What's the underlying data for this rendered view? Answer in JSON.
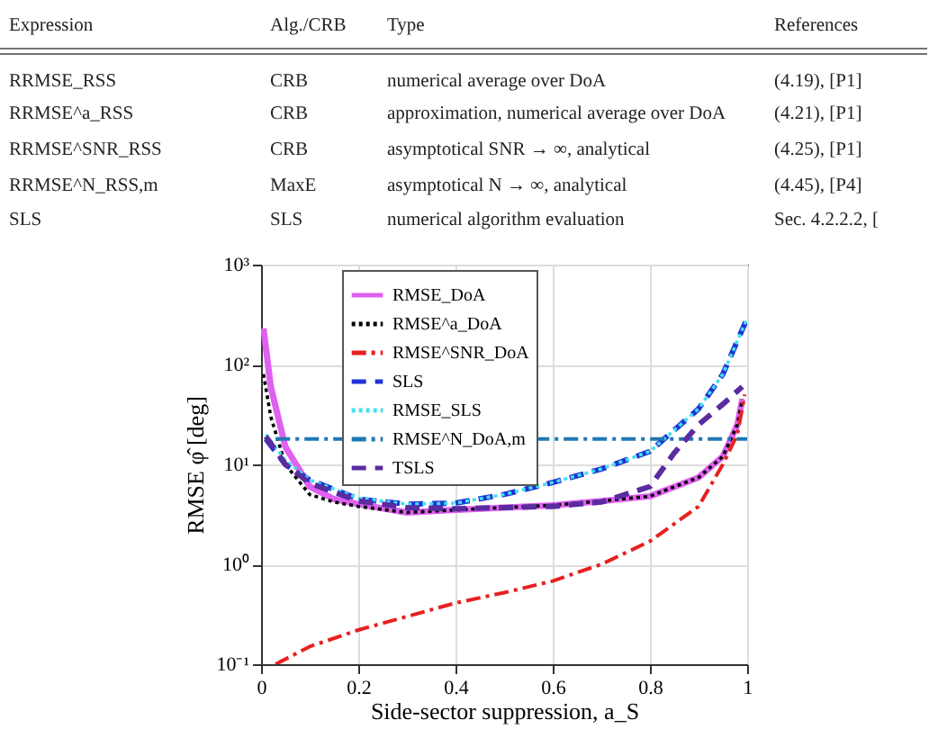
{
  "chart_data": {
    "type": "line",
    "xlabel": "Side-sector suppression, a_S",
    "ylabel": "RMSE φ̂ [deg]",
    "annotations": [
      "Expression",
      "Alg./CRB",
      "Type",
      "References",
      "RRMSE_RSS",
      "CRB",
      "numerical average over DoA",
      "(4.19), [P1]",
      "RRMSE^a_RSS",
      "CRB",
      "approximation, numerical average over DoA",
      "(4.21), [P1]",
      "RRMSE^SNR_RSS",
      "CRB",
      "asymptotical SNR → ∞, analytical",
      "(4.25), [P1]",
      "RRMSE^N_RSS,m",
      "MaxE",
      "asymptotical N → ∞, analytical",
      "(4.45), [P4]",
      "SLS",
      "SLS",
      "numerical algorithm evaluation",
      "Sec. 4.2.2.2, ["
    ],
    "log": "y",
    "grid": true,
    "legend": "top left",
    "xlim": [
      0,
      1
    ],
    "xticks": [
      0,
      0.2,
      0.4,
      0.6,
      0.8,
      1
    ],
    "ylim": [
      0.1,
      1000
    ],
    "yticks": [
      {
        "value": 0.1,
        "label": "10⁻¹"
      },
      {
        "value": 1,
        "label": "10⁰"
      },
      {
        "value": 10,
        "label": "10¹"
      },
      {
        "value": 100,
        "label": "10²"
      },
      {
        "value": 1000,
        "label": "10³"
      }
    ],
    "series": [
      {
        "name": "RMSE_DoA",
        "color": "#e060f0",
        "line_style": "solid",
        "x": [
          0.005,
          0.02,
          0.05,
          0.1,
          0.15,
          0.2,
          0.3,
          0.4,
          0.5,
          0.6,
          0.7,
          0.8,
          0.9,
          0.95,
          0.98,
          0.99
        ],
        "values": [
          230,
          60,
          15,
          6,
          4.5,
          4,
          3.3,
          3.5,
          3.7,
          3.9,
          4.3,
          4.8,
          7.4,
          12,
          25,
          45
        ]
      },
      {
        "name": "RMSE^a_DoA",
        "color": "#000000",
        "line_style": "dotted",
        "x": [
          0.005,
          0.02,
          0.05,
          0.1,
          0.15,
          0.2,
          0.3,
          0.4,
          0.5,
          0.6,
          0.7,
          0.8,
          0.9,
          0.95,
          0.98,
          0.99
        ],
        "values": [
          80,
          30,
          10,
          5,
          4.2,
          3.8,
          3.3,
          3.5,
          3.7,
          3.9,
          4.3,
          4.8,
          7.4,
          12,
          25,
          45
        ]
      },
      {
        "name": "RMSE^SNR_DoA",
        "color": "#e82020",
        "line_style": "dashdot",
        "x": [
          0.03,
          0.1,
          0.2,
          0.3,
          0.4,
          0.5,
          0.6,
          0.7,
          0.8,
          0.9,
          0.95,
          0.98,
          0.995
        ],
        "values": [
          0.1,
          0.15,
          0.22,
          0.3,
          0.41,
          0.52,
          0.68,
          1,
          1.7,
          3.8,
          10,
          20,
          50
        ]
      },
      {
        "name": "SLS",
        "color": "#1f33d6",
        "line_style": "dashed",
        "x": [
          0.01,
          0.05,
          0.1,
          0.2,
          0.3,
          0.4,
          0.5,
          0.6,
          0.7,
          0.8,
          0.9,
          0.95,
          1
        ],
        "values": [
          18,
          10,
          7,
          4.5,
          4,
          4.1,
          5,
          6.6,
          9,
          13.5,
          36,
          80,
          290
        ]
      },
      {
        "name": "RMSE_SLS",
        "color": "#40e0f0",
        "line_style": "dotted",
        "x": [
          0.01,
          0.05,
          0.1,
          0.2,
          0.3,
          0.4,
          0.5,
          0.6,
          0.7,
          0.8,
          0.9,
          0.95,
          1
        ],
        "values": [
          20,
          11,
          7,
          4.6,
          4,
          4.1,
          5,
          6.6,
          9,
          13.5,
          36,
          80,
          290
        ]
      },
      {
        "name": "RMSE^N_DoA,m",
        "color": "#1f77b4",
        "line_style": "dashdot",
        "x": [
          0.03,
          1
        ],
        "values": [
          18,
          18
        ]
      },
      {
        "name": "TSLS",
        "color": "#5a2ca0",
        "line_style": "dashed",
        "x": [
          0.01,
          0.05,
          0.1,
          0.2,
          0.3,
          0.4,
          0.5,
          0.6,
          0.7,
          0.8,
          0.85,
          0.9,
          0.95,
          0.99
        ],
        "values": [
          19,
          10,
          6.5,
          4.3,
          3.7,
          3.6,
          3.7,
          3.8,
          4.2,
          6,
          13,
          25,
          40,
          60
        ]
      }
    ]
  }
}
